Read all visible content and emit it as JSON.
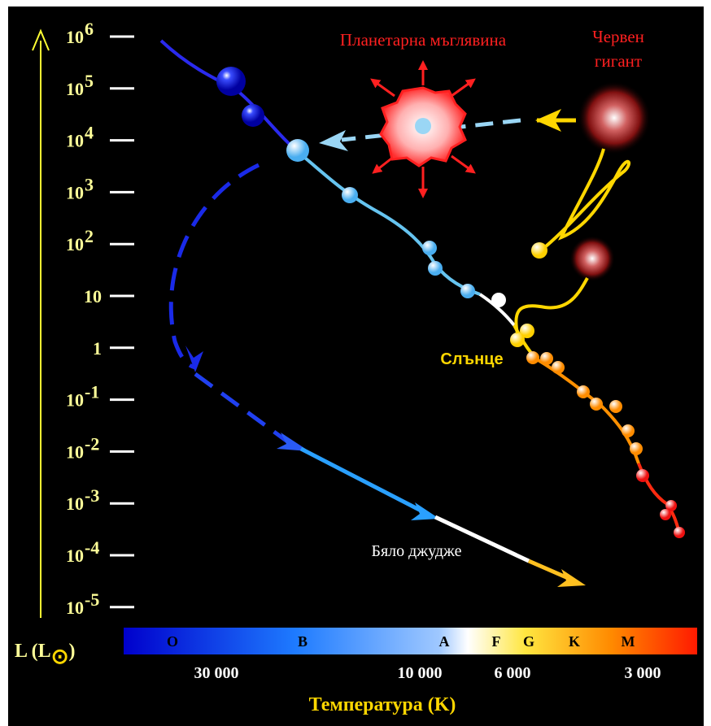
{
  "y_axis": {
    "label": {
      "text": "L (L",
      "symbol": "⊙",
      "close": ")"
    },
    "ticks": [
      {
        "base": "10",
        "exponent": "6"
      },
      {
        "base": "10",
        "exponent": "5"
      },
      {
        "base": "10",
        "exponent": "4"
      },
      {
        "base": "10",
        "exponent": "3"
      },
      {
        "base": "10",
        "exponent": "2"
      },
      {
        "base": "10"
      },
      {
        "base": "1"
      },
      {
        "base": "10",
        "exponent": "-1"
      },
      {
        "base": "10",
        "exponent": "-2"
      },
      {
        "base": "10",
        "exponent": "-3"
      },
      {
        "base": "10",
        "exponent": "-4"
      },
      {
        "base": "10",
        "exponent": "-5"
      }
    ]
  },
  "spectral_classes": [
    "O",
    "B",
    "A",
    "F",
    "G",
    "K",
    "M"
  ],
  "temperatures": [
    "30 000",
    "10 000",
    "6 000",
    "3 000"
  ],
  "x_axis": {
    "title": "Температура (K)"
  },
  "labels": {
    "planetary_nebula": "Планетарна мъглявина",
    "red_giant": [
      "Червен",
      "гигант"
    ],
    "sun": "Слънце",
    "white_dwarf": "Бяло джудже"
  }
}
